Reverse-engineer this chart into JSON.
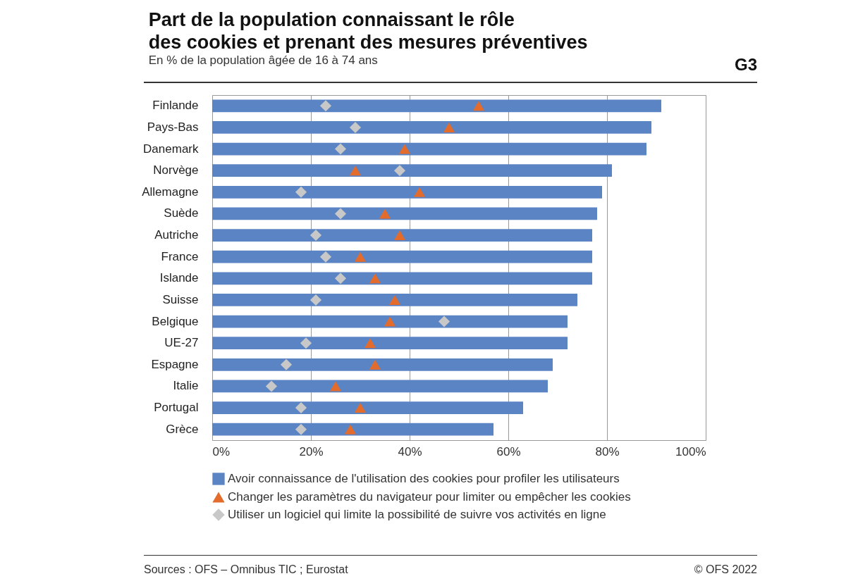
{
  "chart_data": {
    "type": "bar",
    "orientation": "horizontal",
    "title": "Part de la population connaissant le rôle\ndes cookies et prenant des mesures préventives",
    "subtitle": "En % de la population âgée de 16 à 74 ans",
    "categories": [
      "Finlande",
      "Pays-Bas",
      "Danemark",
      "Norvège",
      "Allemagne",
      "Suède",
      "Autriche",
      "France",
      "Islande",
      "Suisse",
      "Belgique",
      "UE-27",
      "Espagne",
      "Italie",
      "Portugal",
      "Grèce"
    ],
    "series": [
      {
        "name": "Avoir connaissance de l'utilisation des cookies pour profiler les utilisateurs",
        "color": "#5b84c4",
        "values": [
          91,
          89,
          88,
          81,
          79,
          78,
          77,
          77,
          77,
          74,
          72,
          72,
          69,
          68,
          63,
          57
        ]
      },
      {
        "name": "Changer les paramètres du navigateur pour limiter ou empêcher les cookies",
        "type": "scatter",
        "marker": "triangle",
        "color": "#e36c2c",
        "values": [
          54,
          48,
          39,
          29,
          42,
          35,
          38,
          30,
          33,
          37,
          36,
          32,
          33,
          25,
          30,
          28
        ]
      },
      {
        "name": "Utiliser un logiciel qui limite la possibilité de suivre vos activités en ligne",
        "type": "scatter",
        "marker": "diamond",
        "color": "#c8c8c8",
        "values": [
          23,
          29,
          26,
          38,
          18,
          26,
          21,
          23,
          26,
          21,
          47,
          19,
          15,
          12,
          18,
          18
        ]
      }
    ],
    "xlim": [
      0,
      100
    ],
    "xticks": [
      {
        "value": 0,
        "label": "0%"
      },
      {
        "value": 20,
        "label": "20%"
      },
      {
        "value": 40,
        "label": "40%"
      },
      {
        "value": 60,
        "label": "60%"
      },
      {
        "value": 80,
        "label": "80%"
      },
      {
        "value": 100,
        "label": "100%"
      }
    ],
    "grid": "x",
    "legend": "bottom",
    "annotations": [
      "G3",
      "Sources : OFS – Omnibus TIC ; Eurostat",
      "© OFS 2022"
    ]
  }
}
